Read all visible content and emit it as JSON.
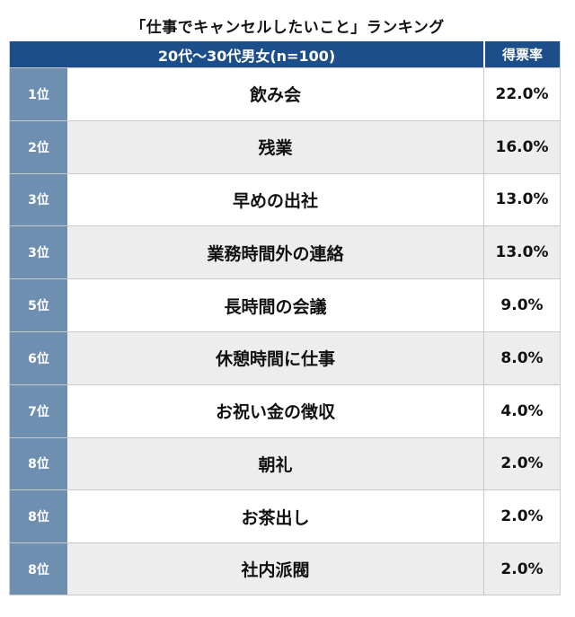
{
  "title": "「仕事でキャンセルしたいこと」ランキング",
  "header": {
    "main_label": "20代〜30代男女(n=100)",
    "score_label": "得票率"
  },
  "rows": [
    {
      "rank": "1位",
      "item": "飲み会",
      "pct": "22.0%"
    },
    {
      "rank": "2位",
      "item": "残業",
      "pct": "16.0%"
    },
    {
      "rank": "3位",
      "item": "早めの出社",
      "pct": "13.0%"
    },
    {
      "rank": "3位",
      "item": "業務時間外の連絡",
      "pct": "13.0%"
    },
    {
      "rank": "5位",
      "item": "長時間の会議",
      "pct": "9.0%"
    },
    {
      "rank": "6位",
      "item": "休憩時間に仕事",
      "pct": "8.0%"
    },
    {
      "rank": "7位",
      "item": "お祝い金の徴収",
      "pct": "4.0%"
    },
    {
      "rank": "8位",
      "item": "朝礼",
      "pct": "2.0%"
    },
    {
      "rank": "8位",
      "item": "お茶出し",
      "pct": "2.0%"
    },
    {
      "rank": "8位",
      "item": "社内派閥",
      "pct": "2.0%"
    }
  ]
}
